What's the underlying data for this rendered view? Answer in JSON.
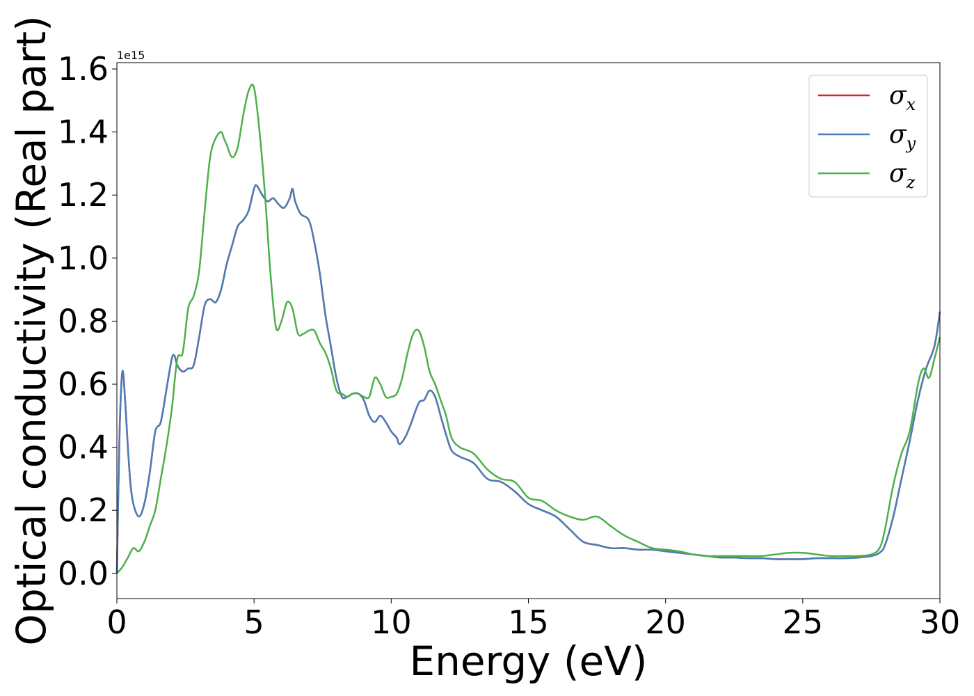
{
  "chart_data": {
    "type": "line",
    "xlabel": "Energy (eV)",
    "ylabel": "Optical conductivity (Real part)",
    "y_offset_label": "1e15",
    "y_scale_factor": 1000000000000000.0,
    "xlim": [
      0,
      30
    ],
    "ylim": [
      -0.08,
      1.62
    ],
    "xticks": [
      0,
      5,
      10,
      15,
      20,
      25,
      30
    ],
    "xtick_labels": [
      "0",
      "5",
      "10",
      "15",
      "20",
      "25",
      "30"
    ],
    "yticks": [
      0.0,
      0.2,
      0.4,
      0.6,
      0.8,
      1.0,
      1.2,
      1.4,
      1.6
    ],
    "ytick_labels": [
      "0.0",
      "0.2",
      "0.4",
      "0.6",
      "0.8",
      "1.0",
      "1.2",
      "1.4",
      "1.6"
    ],
    "grid": false,
    "legend_position": "top-right",
    "colors": {
      "sigma_x": "#d62728",
      "sigma_y": "#4a7db5",
      "sigma_z": "#4daf4a"
    },
    "series": [
      {
        "name": "σx",
        "symbol": "σ",
        "subscript": "x",
        "x": [
          0,
          0.1,
          0.2,
          0.3,
          0.4,
          0.5,
          0.6,
          0.8,
          1.0,
          1.2,
          1.4,
          1.6,
          1.8,
          2.0,
          2.1,
          2.2,
          2.4,
          2.6,
          2.8,
          3.0,
          3.2,
          3.4,
          3.6,
          3.8,
          4.0,
          4.2,
          4.4,
          4.6,
          4.8,
          5.0,
          5.1,
          5.3,
          5.5,
          5.7,
          5.9,
          6.1,
          6.3,
          6.4,
          6.5,
          6.7,
          7.0,
          7.2,
          7.4,
          7.6,
          7.8,
          8.0,
          8.2,
          8.4,
          8.6,
          8.8,
          9.0,
          9.2,
          9.4,
          9.6,
          9.8,
          10.0,
          10.2,
          10.3,
          10.5,
          10.7,
          11.0,
          11.2,
          11.4,
          11.6,
          11.8,
          12.0,
          12.2,
          12.5,
          13.0,
          13.5,
          14.0,
          14.5,
          15.0,
          15.5,
          16.0,
          16.5,
          17.0,
          17.5,
          18.0,
          18.5,
          19.0,
          19.5,
          20.0,
          20.5,
          21.0,
          21.5,
          22.0,
          22.5,
          23.0,
          23.5,
          24.0,
          24.5,
          25.0,
          25.5,
          26.0,
          26.5,
          27.0,
          27.5,
          27.8,
          28.0,
          28.3,
          28.6,
          28.9,
          29.2,
          29.5,
          29.8,
          30.0
        ],
        "y": [
          0,
          0.45,
          0.64,
          0.55,
          0.4,
          0.28,
          0.22,
          0.18,
          0.22,
          0.32,
          0.45,
          0.48,
          0.58,
          0.68,
          0.69,
          0.66,
          0.64,
          0.65,
          0.66,
          0.75,
          0.85,
          0.87,
          0.86,
          0.9,
          0.98,
          1.04,
          1.1,
          1.12,
          1.15,
          1.22,
          1.23,
          1.2,
          1.18,
          1.19,
          1.17,
          1.16,
          1.19,
          1.22,
          1.18,
          1.14,
          1.12,
          1.05,
          0.95,
          0.82,
          0.72,
          0.62,
          0.56,
          0.56,
          0.57,
          0.57,
          0.55,
          0.5,
          0.48,
          0.5,
          0.48,
          0.45,
          0.43,
          0.41,
          0.43,
          0.47,
          0.54,
          0.55,
          0.58,
          0.56,
          0.5,
          0.44,
          0.39,
          0.37,
          0.35,
          0.3,
          0.29,
          0.26,
          0.22,
          0.2,
          0.18,
          0.14,
          0.1,
          0.09,
          0.08,
          0.08,
          0.075,
          0.075,
          0.07,
          0.065,
          0.06,
          0.055,
          0.05,
          0.05,
          0.048,
          0.048,
          0.045,
          0.045,
          0.045,
          0.048,
          0.048,
          0.048,
          0.05,
          0.055,
          0.065,
          0.09,
          0.18,
          0.3,
          0.42,
          0.55,
          0.65,
          0.72,
          0.83
        ]
      },
      {
        "name": "σy",
        "symbol": "σ",
        "subscript": "y",
        "x": [
          0,
          0.1,
          0.2,
          0.3,
          0.4,
          0.5,
          0.6,
          0.8,
          1.0,
          1.2,
          1.4,
          1.6,
          1.8,
          2.0,
          2.1,
          2.2,
          2.4,
          2.6,
          2.8,
          3.0,
          3.2,
          3.4,
          3.6,
          3.8,
          4.0,
          4.2,
          4.4,
          4.6,
          4.8,
          5.0,
          5.1,
          5.3,
          5.5,
          5.7,
          5.9,
          6.1,
          6.3,
          6.4,
          6.5,
          6.7,
          7.0,
          7.2,
          7.4,
          7.6,
          7.8,
          8.0,
          8.2,
          8.4,
          8.6,
          8.8,
          9.0,
          9.2,
          9.4,
          9.6,
          9.8,
          10.0,
          10.2,
          10.3,
          10.5,
          10.7,
          11.0,
          11.2,
          11.4,
          11.6,
          11.8,
          12.0,
          12.2,
          12.5,
          13.0,
          13.5,
          14.0,
          14.5,
          15.0,
          15.5,
          16.0,
          16.5,
          17.0,
          17.5,
          18.0,
          18.5,
          19.0,
          19.5,
          20.0,
          20.5,
          21.0,
          21.5,
          22.0,
          22.5,
          23.0,
          23.5,
          24.0,
          24.5,
          25.0,
          25.5,
          26.0,
          26.5,
          27.0,
          27.5,
          27.8,
          28.0,
          28.3,
          28.6,
          28.9,
          29.2,
          29.5,
          29.8,
          30.0
        ],
        "y": [
          0,
          0.45,
          0.64,
          0.55,
          0.4,
          0.28,
          0.22,
          0.18,
          0.22,
          0.32,
          0.45,
          0.48,
          0.58,
          0.68,
          0.69,
          0.66,
          0.64,
          0.65,
          0.66,
          0.75,
          0.85,
          0.87,
          0.86,
          0.9,
          0.98,
          1.04,
          1.1,
          1.12,
          1.15,
          1.22,
          1.23,
          1.2,
          1.18,
          1.19,
          1.17,
          1.16,
          1.19,
          1.22,
          1.18,
          1.14,
          1.12,
          1.05,
          0.95,
          0.82,
          0.72,
          0.62,
          0.56,
          0.56,
          0.57,
          0.57,
          0.55,
          0.5,
          0.48,
          0.5,
          0.48,
          0.45,
          0.43,
          0.41,
          0.43,
          0.47,
          0.54,
          0.55,
          0.58,
          0.56,
          0.5,
          0.44,
          0.39,
          0.37,
          0.35,
          0.3,
          0.29,
          0.26,
          0.22,
          0.2,
          0.18,
          0.14,
          0.1,
          0.09,
          0.08,
          0.08,
          0.075,
          0.075,
          0.07,
          0.065,
          0.06,
          0.055,
          0.05,
          0.05,
          0.048,
          0.048,
          0.045,
          0.045,
          0.045,
          0.048,
          0.048,
          0.048,
          0.05,
          0.055,
          0.065,
          0.09,
          0.18,
          0.3,
          0.42,
          0.55,
          0.65,
          0.72,
          0.83
        ]
      },
      {
        "name": "σz",
        "symbol": "σ",
        "subscript": "z",
        "x": [
          0,
          0.2,
          0.4,
          0.6,
          0.8,
          1.0,
          1.2,
          1.4,
          1.6,
          1.8,
          2.0,
          2.2,
          2.4,
          2.6,
          2.8,
          3.0,
          3.2,
          3.4,
          3.6,
          3.8,
          3.9,
          4.0,
          4.2,
          4.4,
          4.6,
          4.8,
          5.0,
          5.2,
          5.4,
          5.6,
          5.8,
          6.0,
          6.2,
          6.4,
          6.6,
          6.8,
          7.0,
          7.2,
          7.4,
          7.6,
          7.8,
          8.0,
          8.2,
          8.4,
          8.6,
          8.8,
          9.0,
          9.2,
          9.4,
          9.6,
          9.8,
          10.0,
          10.2,
          10.4,
          10.6,
          10.8,
          11.0,
          11.2,
          11.4,
          11.6,
          11.8,
          12.0,
          12.2,
          12.5,
          13.0,
          13.5,
          14.0,
          14.5,
          15.0,
          15.5,
          16.0,
          16.5,
          17.0,
          17.5,
          18.0,
          18.5,
          19.0,
          19.5,
          20.0,
          20.5,
          21.0,
          21.5,
          22.0,
          22.5,
          23.0,
          23.5,
          24.0,
          24.5,
          25.0,
          25.5,
          26.0,
          26.5,
          27.0,
          27.5,
          27.8,
          28.0,
          28.3,
          28.6,
          28.9,
          29.2,
          29.4,
          29.6,
          29.8,
          30.0
        ],
        "y": [
          0,
          0.02,
          0.05,
          0.08,
          0.07,
          0.1,
          0.15,
          0.2,
          0.3,
          0.4,
          0.52,
          0.68,
          0.7,
          0.84,
          0.88,
          0.96,
          1.15,
          1.32,
          1.38,
          1.4,
          1.38,
          1.36,
          1.32,
          1.35,
          1.45,
          1.53,
          1.54,
          1.4,
          1.2,
          0.95,
          0.78,
          0.8,
          0.86,
          0.84,
          0.76,
          0.76,
          0.77,
          0.77,
          0.73,
          0.7,
          0.65,
          0.58,
          0.57,
          0.56,
          0.57,
          0.57,
          0.56,
          0.56,
          0.62,
          0.6,
          0.56,
          0.56,
          0.57,
          0.62,
          0.7,
          0.76,
          0.77,
          0.72,
          0.64,
          0.6,
          0.55,
          0.5,
          0.43,
          0.4,
          0.38,
          0.33,
          0.3,
          0.29,
          0.24,
          0.23,
          0.2,
          0.18,
          0.17,
          0.18,
          0.15,
          0.12,
          0.1,
          0.08,
          0.075,
          0.07,
          0.06,
          0.055,
          0.055,
          0.055,
          0.055,
          0.055,
          0.06,
          0.065,
          0.065,
          0.06,
          0.055,
          0.055,
          0.055,
          0.06,
          0.08,
          0.14,
          0.28,
          0.38,
          0.45,
          0.6,
          0.65,
          0.62,
          0.68,
          0.75
        ]
      }
    ]
  }
}
